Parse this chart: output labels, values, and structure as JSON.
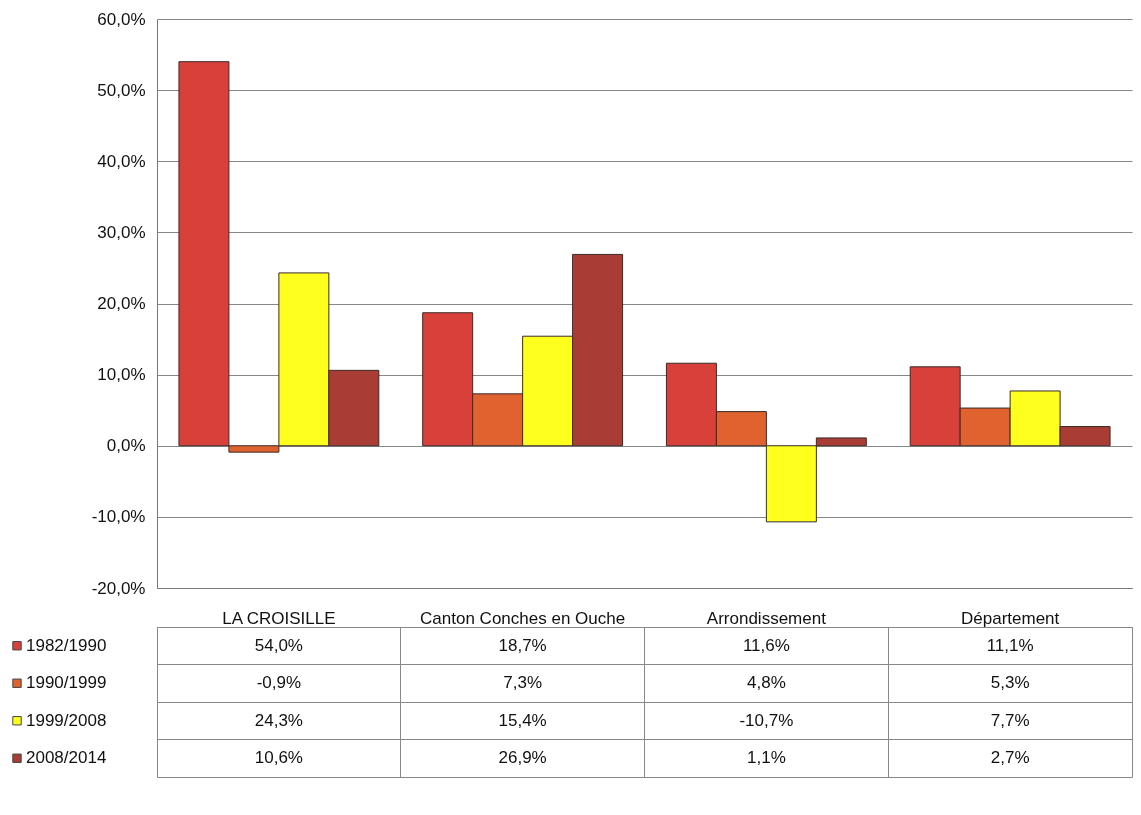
{
  "chart_data": {
    "type": "bar",
    "categories": [
      "LA CROISILLE",
      "Canton Conches en Ouche",
      "Arrondissement",
      "Département"
    ],
    "series": [
      {
        "name": "1982/1990",
        "color": "#d8413a",
        "values": [
          54.0,
          18.7,
          11.6,
          11.1
        ],
        "value_labels": [
          "54,0%",
          "18,7%",
          "11,6%",
          "11,1%"
        ]
      },
      {
        "name": "1990/1999",
        "color": "#e0632f",
        "values": [
          -0.9,
          7.3,
          4.8,
          5.3
        ],
        "value_labels": [
          "-0,9%",
          "7,3%",
          "4,8%",
          "5,3%"
        ]
      },
      {
        "name": "1999/2008",
        "color": "#ffff1e",
        "values": [
          24.3,
          15.4,
          -10.7,
          7.7
        ],
        "value_labels": [
          "24,3%",
          "15,4%",
          "-10,7%",
          "7,7%"
        ]
      },
      {
        "name": "2008/2014",
        "color": "#a93d35",
        "values": [
          10.6,
          26.9,
          1.1,
          2.7
        ],
        "value_labels": [
          "10,6%",
          "26,9%",
          "1,1%",
          "2,7%"
        ]
      }
    ],
    "ylim": [
      -20,
      60
    ],
    "yticks": [
      {
        "value": -20,
        "label": "-20,0%"
      },
      {
        "value": -10,
        "label": "-10,0%"
      },
      {
        "value": 0,
        "label": "0,0%"
      },
      {
        "value": 10,
        "label": "10,0%"
      },
      {
        "value": 20,
        "label": "20,0%"
      },
      {
        "value": 30,
        "label": "30,0%"
      },
      {
        "value": 40,
        "label": "40,0%"
      },
      {
        "value": 50,
        "label": "50,0%"
      },
      {
        "value": 60,
        "label": "60,0%"
      }
    ],
    "grid": "y",
    "legend": "bottom"
  }
}
